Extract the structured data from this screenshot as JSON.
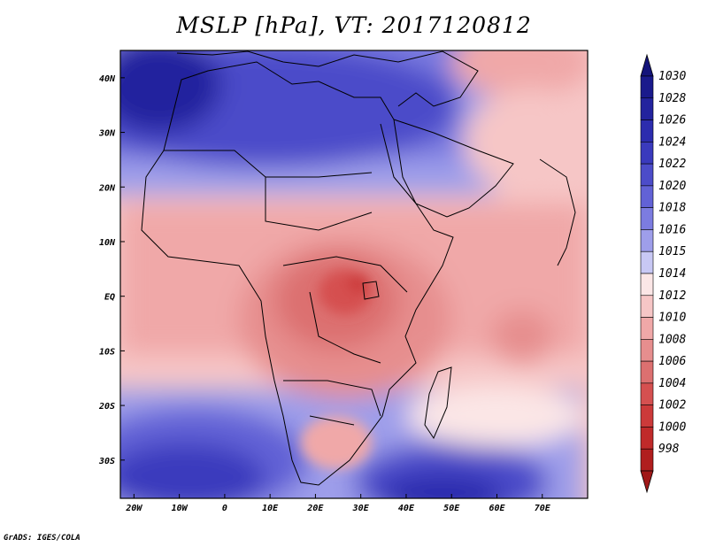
{
  "title": "MSLP [hPa], VT: 2017120812",
  "credit": "GrADS: IGES/COLA",
  "map": {
    "type": "contour-fill",
    "variable": "Mean sea level pressure",
    "units": "hPa",
    "valid_time": "2017120812",
    "lon_range": [
      -23,
      80
    ],
    "lat_range": [
      -37,
      45
    ],
    "lon_ticks": [
      {
        "value": -20,
        "label": "20W"
      },
      {
        "value": -10,
        "label": "10W"
      },
      {
        "value": 0,
        "label": "0"
      },
      {
        "value": 10,
        "label": "10E"
      },
      {
        "value": 20,
        "label": "20E"
      },
      {
        "value": 30,
        "label": "30E"
      },
      {
        "value": 40,
        "label": "40E"
      },
      {
        "value": 50,
        "label": "50E"
      },
      {
        "value": 60,
        "label": "60E"
      },
      {
        "value": 70,
        "label": "70E"
      }
    ],
    "lat_ticks": [
      {
        "value": 40,
        "label": "40N"
      },
      {
        "value": 30,
        "label": "30N"
      },
      {
        "value": 20,
        "label": "20N"
      },
      {
        "value": 10,
        "label": "10N"
      },
      {
        "value": 0,
        "label": "EQ"
      },
      {
        "value": -10,
        "label": "10S"
      },
      {
        "value": -20,
        "label": "20S"
      },
      {
        "value": -30,
        "label": "30S"
      }
    ]
  },
  "colorbar": {
    "levels": [
      {
        "label": "1030",
        "color": "#1a1a8c"
      },
      {
        "label": "1028",
        "color": "#23239e"
      },
      {
        "label": "1026",
        "color": "#2c2cae"
      },
      {
        "label": "1024",
        "color": "#3a3abd"
      },
      {
        "label": "1022",
        "color": "#4c4cc9"
      },
      {
        "label": "1020",
        "color": "#6262d6"
      },
      {
        "label": "1018",
        "color": "#7c7ce0"
      },
      {
        "label": "1016",
        "color": "#9e9eea"
      },
      {
        "label": "1015",
        "color": "#c8c8f4"
      },
      {
        "label": "1014",
        "color": "#fbe6e6"
      },
      {
        "label": "1012",
        "color": "#f6c6c6"
      },
      {
        "label": "1010",
        "color": "#f0a8a8"
      },
      {
        "label": "1008",
        "color": "#e68e8e"
      },
      {
        "label": "1006",
        "color": "#dc7070"
      },
      {
        "label": "1004",
        "color": "#d55050"
      },
      {
        "label": "1002",
        "color": "#cc3a3a"
      },
      {
        "label": "1000",
        "color": "#c02a2a"
      },
      {
        "label": "998",
        "color": "#b01e1e"
      }
    ],
    "top_triangle_color": "#14147a",
    "bottom_triangle_color": "#a01818"
  },
  "colors": {
    "high": "#1a1a8c",
    "mid_high": "#7c7ce0",
    "neutral": "#fbe6e6",
    "mid_low": "#f0a8a8",
    "low": "#dc7070",
    "deep_low": "#cc3a3a"
  }
}
